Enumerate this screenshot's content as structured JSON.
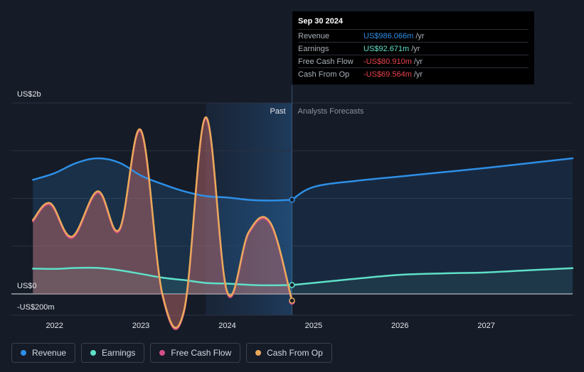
{
  "chart_data": {
    "type": "area",
    "unit_note": "values in US$ millions",
    "y_ticks": [
      {
        "value": 2000,
        "label": "US$2b"
      },
      {
        "value": 0,
        "label": "US$0"
      },
      {
        "value": -200,
        "label": "-US$200m"
      }
    ],
    "ylim": [
      -200,
      2000
    ],
    "xlim": [
      2021.5,
      2028.0
    ],
    "x_ticks": [
      {
        "value": 2022,
        "label": "2022"
      },
      {
        "value": 2023,
        "label": "2023"
      },
      {
        "value": 2024,
        "label": "2024"
      },
      {
        "value": 2025,
        "label": "2025"
      },
      {
        "value": 2026,
        "label": "2026"
      },
      {
        "value": 2027,
        "label": "2027"
      }
    ],
    "past_label": "Past",
    "forecast_label": "Analysts Forecasts",
    "divider_x": 2024.75,
    "highlight_start_x": 2023.75,
    "series": [
      {
        "name": "Revenue",
        "color": "#2e8fe6",
        "past": [
          [
            2021.75,
            1195
          ],
          [
            2022.0,
            1265
          ],
          [
            2022.25,
            1370
          ],
          [
            2022.5,
            1420
          ],
          [
            2022.75,
            1375
          ],
          [
            2023.0,
            1240
          ],
          [
            2023.25,
            1150
          ],
          [
            2023.5,
            1075
          ],
          [
            2023.75,
            1025
          ],
          [
            2024.0,
            1010
          ],
          [
            2024.25,
            985
          ],
          [
            2024.5,
            978
          ],
          [
            2024.75,
            986
          ]
        ],
        "forecast": [
          [
            2024.75,
            986
          ],
          [
            2025.0,
            1120
          ],
          [
            2025.5,
            1185
          ],
          [
            2026.0,
            1230
          ],
          [
            2026.5,
            1275
          ],
          [
            2027.0,
            1320
          ],
          [
            2027.5,
            1370
          ],
          [
            2028.0,
            1420
          ]
        ]
      },
      {
        "name": "Earnings",
        "color": "#5fe0c8",
        "past": [
          [
            2021.75,
            265
          ],
          [
            2022.0,
            262
          ],
          [
            2022.25,
            272
          ],
          [
            2022.5,
            272
          ],
          [
            2022.75,
            248
          ],
          [
            2023.0,
            210
          ],
          [
            2023.25,
            170
          ],
          [
            2023.5,
            145
          ],
          [
            2023.75,
            115
          ],
          [
            2024.0,
            108
          ],
          [
            2024.25,
            95
          ],
          [
            2024.5,
            90
          ],
          [
            2024.75,
            93
          ]
        ],
        "forecast": [
          [
            2024.75,
            93
          ],
          [
            2025.0,
            115
          ],
          [
            2025.5,
            160
          ],
          [
            2026.0,
            200
          ],
          [
            2026.5,
            215
          ],
          [
            2027.0,
            225
          ],
          [
            2027.5,
            248
          ],
          [
            2028.0,
            270
          ]
        ]
      },
      {
        "name": "Free Cash Flow",
        "color": "#d24f86",
        "past": [
          [
            2021.75,
            760
          ],
          [
            2021.95,
            935
          ],
          [
            2022.2,
            585
          ],
          [
            2022.5,
            1060
          ],
          [
            2022.75,
            660
          ],
          [
            2023.0,
            1700
          ],
          [
            2023.25,
            -20
          ],
          [
            2023.5,
            -185
          ],
          [
            2023.75,
            1835
          ],
          [
            2024.0,
            5
          ],
          [
            2024.25,
            635
          ],
          [
            2024.5,
            730
          ],
          [
            2024.75,
            -81
          ]
        ],
        "forecast": []
      },
      {
        "name": "Cash From Op",
        "color": "#e9a95a",
        "past": [
          [
            2021.75,
            775
          ],
          [
            2021.95,
            950
          ],
          [
            2022.2,
            600
          ],
          [
            2022.5,
            1075
          ],
          [
            2022.75,
            675
          ],
          [
            2023.0,
            1715
          ],
          [
            2023.25,
            -5
          ],
          [
            2023.5,
            -170
          ],
          [
            2023.75,
            1850
          ],
          [
            2024.0,
            20
          ],
          [
            2024.25,
            650
          ],
          [
            2024.5,
            745
          ],
          [
            2024.75,
            -70
          ]
        ],
        "forecast": []
      }
    ]
  },
  "tooltip": {
    "date": "Sep 30 2024",
    "rows": [
      {
        "label": "Revenue",
        "value": "US$986.066m",
        "unit": "/yr",
        "color": "#2e8fe6"
      },
      {
        "label": "Earnings",
        "value": "US$92.671m",
        "unit": "/yr",
        "color": "#5fe0c8"
      },
      {
        "label": "Free Cash Flow",
        "value": "-US$80.910m",
        "unit": "/yr",
        "color": "#e8444d"
      },
      {
        "label": "Cash From Op",
        "value": "-US$69.564m",
        "unit": "/yr",
        "color": "#e8444d"
      }
    ]
  },
  "legend": [
    {
      "label": "Revenue",
      "color": "#2e8fe6"
    },
    {
      "label": "Earnings",
      "color": "#5fe0c8"
    },
    {
      "label": "Free Cash Flow",
      "color": "#d24f86"
    },
    {
      "label": "Cash From Op",
      "color": "#e9a95a"
    }
  ]
}
